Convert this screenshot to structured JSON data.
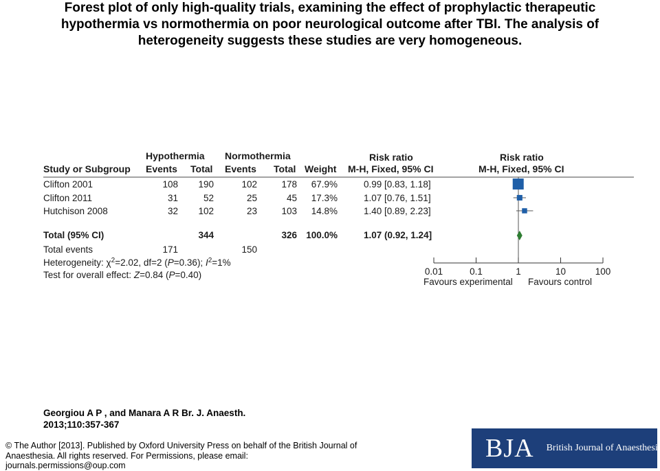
{
  "title": "Forest plot of only high-quality trials, examining the effect of prophylactic therapeutic hypothermia vs normothermia on poor neurological outcome after TBI. The analysis of heterogeneity suggests these studies are very homogeneous.",
  "chart_data": {
    "type": "forest",
    "table_headers": {
      "group_hypothermia": "Hypothermia",
      "group_normothermia": "Normothermia",
      "group_rr": "Risk ratio",
      "group_rr_plot": "Risk ratio",
      "study": "Study or Subgroup",
      "events_hypo": "Events",
      "total_hypo": "Total",
      "events_normo": "Events",
      "total_normo": "Total",
      "weight": "Weight",
      "method": "M-H, Fixed, 95% CI",
      "method_plot": "M-H, Fixed, 95% CI"
    },
    "studies": [
      {
        "name": "Clifton 2001",
        "events_hypo": "108",
        "total_hypo": "190",
        "events_normo": "102",
        "total_normo": "178",
        "weight": "67.9%",
        "weight_value": 67.9,
        "ci_text": "0.99 [0.83, 1.18]",
        "rr": 0.99,
        "lower": 0.83,
        "upper": 1.18
      },
      {
        "name": "Clifton 2011",
        "events_hypo": "31",
        "total_hypo": "52",
        "events_normo": "25",
        "total_normo": "45",
        "weight": "17.3%",
        "weight_value": 17.3,
        "ci_text": "1.07 [0.76, 1.51]",
        "rr": 1.07,
        "lower": 0.76,
        "upper": 1.51
      },
      {
        "name": "Hutchison 2008",
        "events_hypo": "32",
        "total_hypo": "102",
        "events_normo": "23",
        "total_normo": "103",
        "weight": "14.8%",
        "weight_value": 14.8,
        "ci_text": "1.40 [0.89, 2.23]",
        "rr": 1.4,
        "lower": 0.89,
        "upper": 2.23
      }
    ],
    "total": {
      "label": "Total (95% CI)",
      "total_hypo": "344",
      "total_normo": "326",
      "weight": "100.0%",
      "ci_text": "1.07 (0.92, 1.24]",
      "rr": 1.07,
      "lower": 0.92,
      "upper": 1.24
    },
    "total_events": {
      "label": "Total events",
      "hypo": "171",
      "normo": "150"
    },
    "heterogeneity": {
      "prefix": "Heterogeneity: χ",
      "sup1": "2",
      "mid": "=2.02, df=2 (",
      "p1": "P",
      "after_p1": "=0.36); ",
      "i": "I",
      "sup2": "2",
      "end": "=1%"
    },
    "overall_effect": {
      "prefix": "Test for overall effect: ",
      "z": "Z",
      "mid": "=0.84 (",
      "p": "P",
      "end": "=0.40)"
    },
    "axis": {
      "scale": "log",
      "xlim": [
        0.01,
        100
      ],
      "ticks": [
        0.01,
        0.1,
        1,
        10,
        100
      ],
      "tick_labels": [
        "0.01",
        "0.1",
        "1",
        "10",
        "100"
      ]
    },
    "favours_left": "Favours experimental",
    "favours_right": "Favours control",
    "colors": {
      "study_marker": "#1f5fa8",
      "total_marker": "#2e7d32",
      "lines": "#555555"
    }
  },
  "citation": {
    "line1": "Georgiou A P , and Manara A R Br. J. Anaesth.",
    "line2": "2013;110:357-367"
  },
  "copyright": "© The Author [2013]. Published by Oxford University Press on behalf of the British Journal of Anaesthesia. All rights reserved. For Permissions, please email: journals.permissions@oup.com",
  "logo": {
    "mark": "BJA",
    "name": "British Journal of Anaesthesia"
  }
}
